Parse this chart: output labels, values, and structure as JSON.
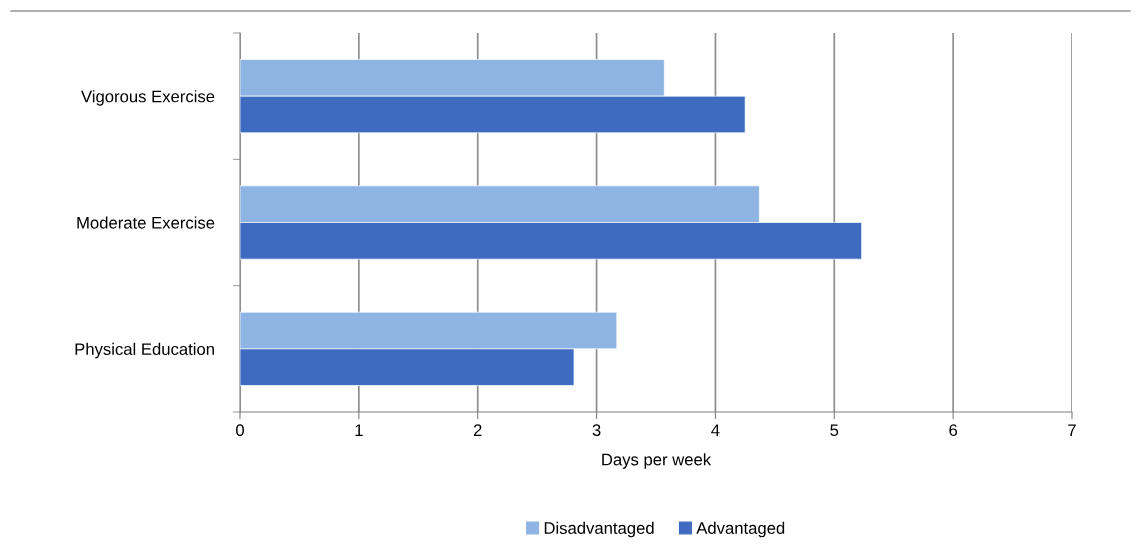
{
  "chart_data": {
    "type": "bar",
    "orientation": "horizontal",
    "xlabel": "Days per week",
    "categories": [
      "Vigorous Exercise",
      "Moderate Exercise",
      "Physical Education"
    ],
    "series": [
      {
        "name": "Disadvantaged",
        "color": "#8eb4e3",
        "values": [
          3.57,
          4.37,
          3.17
        ]
      },
      {
        "name": "Advantaged",
        "color": "#3e6bc0",
        "values": [
          4.25,
          5.23,
          2.81
        ]
      }
    ],
    "xlim": [
      0,
      7
    ],
    "xticks": [
      0,
      1,
      2,
      3,
      4,
      5,
      6,
      7
    ],
    "grid": "x",
    "legend": "bottom"
  }
}
